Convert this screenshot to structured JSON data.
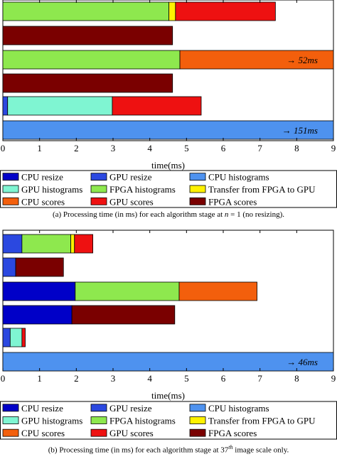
{
  "chart_data": [
    {
      "type": "bar",
      "orientation": "horizontal",
      "stacked": true,
      "xlabel": "time(ms)",
      "xlim": [
        0,
        9
      ],
      "xticks": [
        "0",
        "1",
        "2",
        "3",
        "4",
        "5",
        "6",
        "7",
        "8",
        "9"
      ],
      "grid": false,
      "legend_position": "bottom",
      "rows": [
        {
          "segments": [
            {
              "series": "FPGA histograms",
              "value": 4.52
            },
            {
              "series": "Transfer from FPGA to GPU",
              "value": 0.18
            },
            {
              "series": "GPU scores",
              "value": 2.72
            }
          ]
        },
        {
          "segments": [
            {
              "series": "FPGA scores",
              "value": 4.62
            }
          ]
        },
        {
          "segments": [
            {
              "series": "FPGA histograms",
              "value": 4.82
            },
            {
              "series": "CPU scores",
              "value": 47.18
            }
          ],
          "annotation": "→ 52ms"
        },
        {
          "segments": [
            {
              "series": "FPGA scores",
              "value": 4.62
            }
          ]
        },
        {
          "segments": [
            {
              "series": "GPU resize",
              "value": 0.13
            },
            {
              "series": "GPU histograms",
              "value": 2.85
            },
            {
              "series": "GPU scores",
              "value": 2.42
            }
          ]
        },
        {
          "segments": [
            {
              "series": "CPU histograms",
              "value": 151
            }
          ],
          "annotation": "→ 151ms"
        }
      ],
      "caption": "(a) Processing time (in ms) for each algorithm stage at n = 1 (no resizing)."
    },
    {
      "type": "bar",
      "orientation": "horizontal",
      "stacked": true,
      "xlabel": "time(ms)",
      "xlim": [
        0,
        9
      ],
      "xticks": [
        "0",
        "1",
        "2",
        "3",
        "4",
        "5",
        "6",
        "7",
        "8",
        "9"
      ],
      "grid": false,
      "legend_position": "bottom",
      "rows": [
        {
          "segments": [
            {
              "series": "GPU resize",
              "value": 0.52
            },
            {
              "series": "FPGA histograms",
              "value": 1.33
            },
            {
              "series": "Transfer from FPGA to GPU",
              "value": 0.1
            },
            {
              "series": "GPU scores",
              "value": 0.5
            }
          ]
        },
        {
          "segments": [
            {
              "series": "GPU resize",
              "value": 0.35
            },
            {
              "series": "FPGA scores",
              "value": 1.3
            }
          ]
        },
        {
          "segments": [
            {
              "series": "CPU resize",
              "value": 1.97
            },
            {
              "series": "FPGA histograms",
              "value": 2.83
            },
            {
              "series": "CPU scores",
              "value": 2.12
            }
          ]
        },
        {
          "segments": [
            {
              "series": "CPU resize",
              "value": 1.88
            },
            {
              "series": "FPGA scores",
              "value": 2.8
            }
          ]
        },
        {
          "segments": [
            {
              "series": "GPU resize",
              "value": 0.2
            },
            {
              "series": "GPU histograms",
              "value": 0.32
            },
            {
              "series": "GPU scores",
              "value": 0.09
            }
          ]
        },
        {
          "segments": [
            {
              "series": "CPU histograms",
              "value": 46
            }
          ],
          "annotation": "→ 46ms"
        }
      ],
      "caption": "(b) Processing time (in ms) for each algorithm stage at 37th image scale only."
    }
  ],
  "legend": [
    {
      "name": "CPU resize",
      "color": "#0000c8"
    },
    {
      "name": "GPU resize",
      "color": "#2b48e0"
    },
    {
      "name": "CPU histograms",
      "color": "#4e92ef"
    },
    {
      "name": "GPU histograms",
      "color": "#7ff5d2"
    },
    {
      "name": "FPGA histograms",
      "color": "#8ee84e"
    },
    {
      "name": "Transfer from FPGA to GPU",
      "color": "#fff200"
    },
    {
      "name": "CPU scores",
      "color": "#f35f0c"
    },
    {
      "name": "GPU scores",
      "color": "#ee1111"
    },
    {
      "name": "FPGA scores",
      "color": "#7a0000"
    }
  ],
  "captions": {
    "a_prefix": "(a) Processing time (in ms) for each algorithm stage at ",
    "a_var": "n",
    "a_suffix": " = 1 (no resizing).",
    "b_prefix": "(b) Processing time (in ms) for each algorithm stage at 37",
    "b_sup": "th",
    "b_suffix": " image scale only."
  }
}
